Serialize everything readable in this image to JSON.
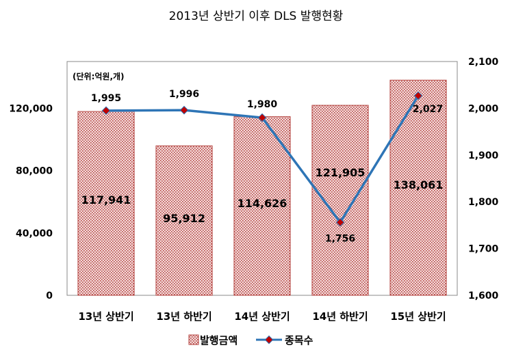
{
  "chart_data": {
    "type": "bar",
    "title": "2013년 상반기 이후 DLS 발행현황",
    "unit_note": "(단위:억원,개)",
    "categories": [
      "13년 상반기",
      "13년 하반기",
      "14년 상반기",
      "14년 하반기",
      "15년 상반기"
    ],
    "series": [
      {
        "name": "발행금액",
        "type": "bar",
        "axis": "left",
        "values": [
          117941,
          95912,
          114626,
          121905,
          138061
        ],
        "labels": [
          "117,941",
          "95,912",
          "114,626",
          "121,905",
          "138,061"
        ],
        "color": "#C0504D"
      },
      {
        "name": "종목수",
        "type": "line",
        "axis": "right",
        "values": [
          1995,
          1996,
          1980,
          1756,
          2027
        ],
        "labels": [
          "1,995",
          "1,996",
          "1,980",
          "1,756",
          "2,027"
        ],
        "color": "#2E75B6",
        "marker_color": "#C00000"
      }
    ],
    "y_left": {
      "ylim": [
        0,
        150000
      ],
      "ticks": [
        0,
        40000,
        80000,
        120000
      ],
      "tick_labels": [
        "0",
        "40,000",
        "80,000",
        "120,000"
      ]
    },
    "y_right": {
      "ylim": [
        1600,
        2100
      ],
      "ticks": [
        1600,
        1700,
        1800,
        1900,
        2000,
        2100
      ],
      "tick_labels": [
        "1,600",
        "1,700",
        "1,800",
        "1,900",
        "2,000",
        "2,100"
      ]
    },
    "grid": false,
    "legend_position": "bottom"
  }
}
